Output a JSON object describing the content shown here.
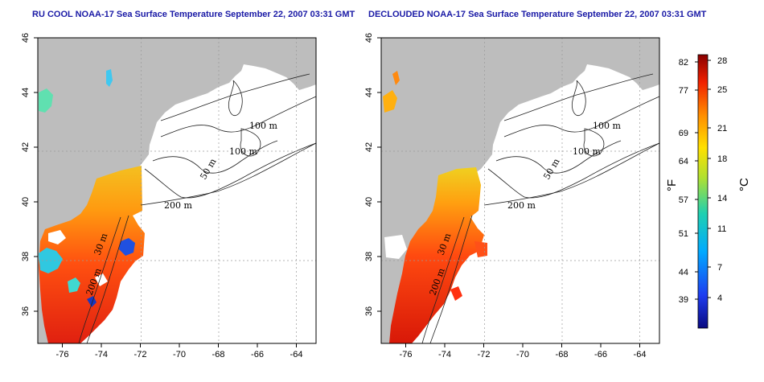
{
  "panels": [
    {
      "title": "RU COOL NOAA-17 Sea Surface Temperature September 22, 2007 03:31 GMT",
      "contours": [
        "100 m",
        "100 m",
        "50 m",
        "200 m",
        "30 m",
        "200 m"
      ]
    },
    {
      "title": "DECLOUDED NOAA-17 Sea Surface Temperature September 22, 2007 03:31 GMT",
      "contours": [
        "100 m",
        "100 m",
        "50 m",
        "200 m",
        "30 m",
        "200 m"
      ]
    }
  ],
  "axes": {
    "lon_ticks": [
      "-76",
      "-74",
      "-72",
      "-70",
      "-68",
      "-66",
      "-64"
    ],
    "lat_ticks": [
      "46",
      "44",
      "42",
      "40",
      "38",
      "36"
    ]
  },
  "colorbar": {
    "fahrenheit_label": "°F",
    "celsius_label": "°C",
    "fahrenheit_ticks": [
      "82",
      "77",
      "69",
      "64",
      "57",
      "51",
      "44",
      "39"
    ],
    "celsius_ticks": [
      "28",
      "25",
      "21",
      "18",
      "14",
      "11",
      "7",
      "4"
    ]
  },
  "colors": {
    "land": "#bdbdbd",
    "title": "#1a1aa6",
    "warm": "#e02a10",
    "cool": "#1040d0"
  }
}
